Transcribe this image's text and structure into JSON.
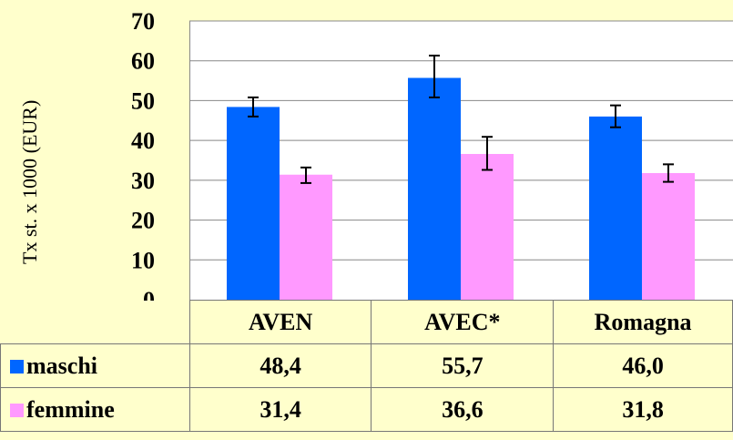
{
  "chart_data": {
    "type": "bar",
    "ylabel": "Tx st. x 1000 (EUR)",
    "ylim": [
      0,
      70
    ],
    "yticks": [
      0,
      10,
      20,
      30,
      40,
      50,
      60,
      70
    ],
    "grid": true,
    "categories": [
      "AVEN",
      "AVEC*",
      "Romagna"
    ],
    "series": [
      {
        "name": "maschi",
        "color": "#0066FF",
        "values": [
          48.4,
          55.7,
          46.0
        ],
        "labels": [
          "48,4",
          "55,7",
          "46,0"
        ],
        "err_low": [
          46.0,
          50.8,
          43.3
        ],
        "err_high": [
          50.8,
          61.3,
          48.8
        ]
      },
      {
        "name": "femmine",
        "color": "#FF99FF",
        "values": [
          31.4,
          36.6,
          31.8
        ],
        "labels": [
          "31,4",
          "36,6",
          "31,8"
        ],
        "err_low": [
          29.3,
          32.6,
          29.6
        ],
        "err_high": [
          33.2,
          40.9,
          34.0
        ]
      }
    ]
  }
}
